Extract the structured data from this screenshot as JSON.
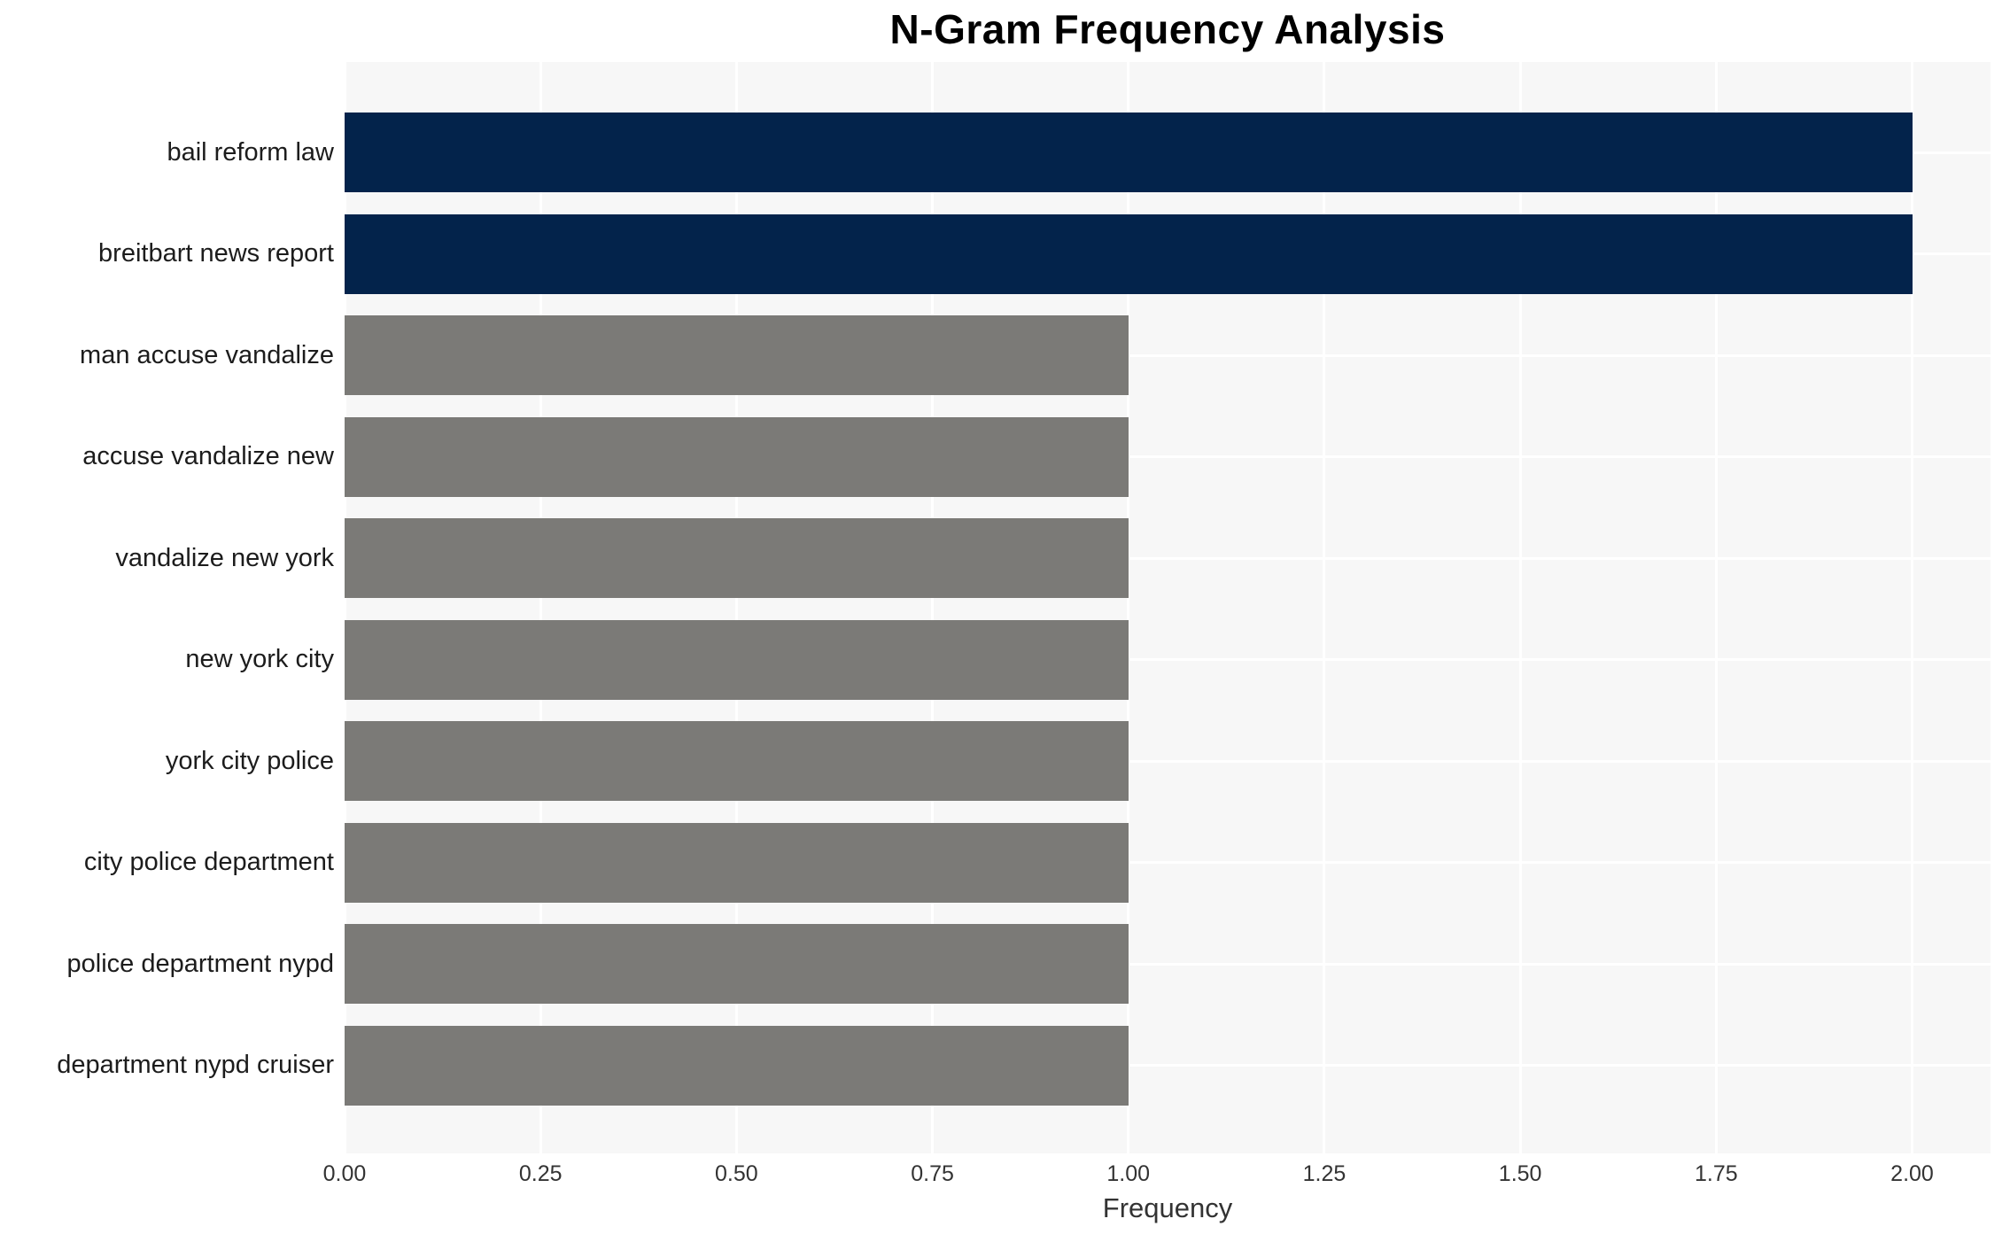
{
  "chart_data": {
    "type": "bar",
    "orientation": "horizontal",
    "title": "N-Gram Frequency Analysis",
    "xlabel": "Frequency",
    "ylabel": "",
    "categories": [
      "bail reform law",
      "breitbart news report",
      "man accuse vandalize",
      "accuse vandalize new",
      "vandalize new york",
      "new york city",
      "york city police",
      "city police department",
      "police department nypd",
      "department nypd cruiser"
    ],
    "values": [
      2,
      2,
      1,
      1,
      1,
      1,
      1,
      1,
      1,
      1
    ],
    "xlim": [
      0,
      2.1
    ],
    "xticks": [
      0,
      0.25,
      0.5,
      0.75,
      1.0,
      1.25,
      1.5,
      1.75,
      2.0
    ],
    "xtick_labels": [
      "0.00",
      "0.25",
      "0.50",
      "0.75",
      "1.00",
      "1.25",
      "1.50",
      "1.75",
      "2.00"
    ],
    "grid": true,
    "legend": false,
    "colors": {
      "highlight_bar": "#03234b",
      "default_bar": "#7b7a77",
      "plot_background": "#f7f7f7",
      "gridline": "#ffffff",
      "title_text": "#000000",
      "tick_text": "#333333",
      "category_text": "#1c1c1c"
    }
  }
}
